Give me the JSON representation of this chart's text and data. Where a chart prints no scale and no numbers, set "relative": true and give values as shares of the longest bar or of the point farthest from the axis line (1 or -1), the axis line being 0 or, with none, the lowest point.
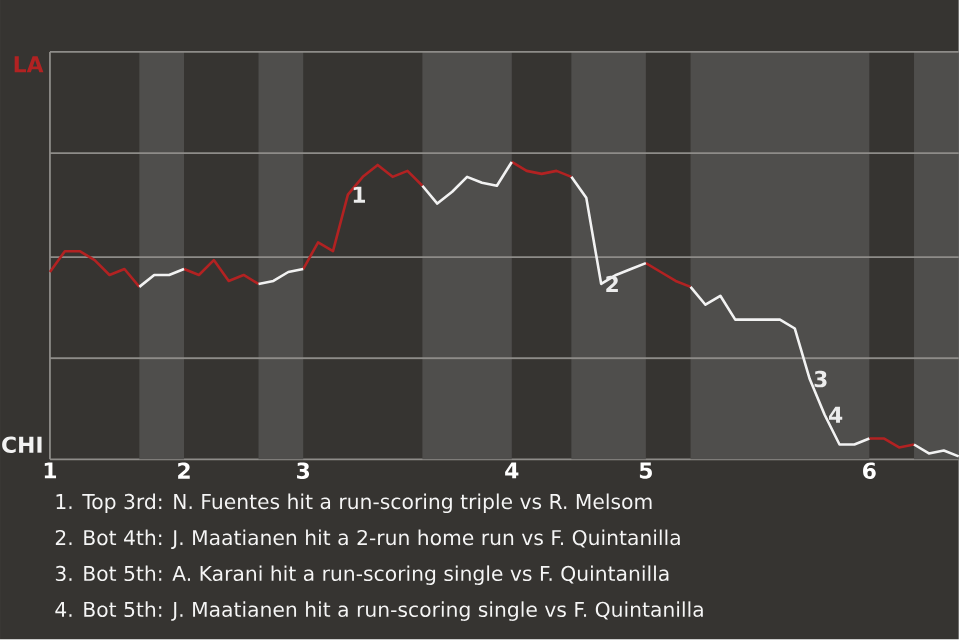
{
  "chart_data": {
    "type": "line",
    "relative": true,
    "ref_lines": [
      {
        "axis": "y",
        "value": 0.34,
        "color": "#8e8c89"
      },
      {
        "axis": "y",
        "value": 0.68,
        "color": "#8e8c89"
      },
      {
        "axis": "y",
        "value": 1.03,
        "color": "#8e8c89"
      }
    ],
    "categories": [
      "1",
      null,
      null,
      null,
      null,
      null,
      null,
      null,
      null,
      "2",
      null,
      null,
      null,
      null,
      null,
      null,
      null,
      "3",
      null,
      null,
      null,
      null,
      null,
      null,
      null,
      null,
      null,
      null,
      null,
      null,
      null,
      "4",
      null,
      null,
      null,
      null,
      null,
      null,
      null,
      null,
      "5",
      null,
      null,
      null,
      null,
      null,
      null,
      null,
      null,
      null,
      null,
      null,
      null,
      null,
      null,
      "6",
      null,
      null,
      null,
      null,
      null,
      null
    ],
    "series": [
      {
        "color": "#b22222",
        "values": [
          0.63,
          0.7,
          0.7,
          0.67,
          0.62,
          0.64,
          0.58,
          null,
          null,
          0.64,
          0.62,
          0.67,
          0.6,
          0.62,
          0.59,
          null,
          null,
          0.64,
          0.73,
          0.7,
          0.89,
          0.95,
          0.99,
          0.95,
          0.97,
          0.92,
          null,
          null,
          null,
          null,
          null,
          1,
          0.97,
          0.96,
          0.97,
          0.95,
          null,
          null,
          null,
          null,
          0.66,
          0.63,
          0.6,
          0.58,
          null,
          null,
          null,
          null,
          null,
          null,
          null,
          null,
          null,
          null,
          null,
          0.07,
          0.07,
          0.04,
          0.05,
          null,
          null,
          null
        ]
      },
      {
        "color": "#f2f2f2",
        "values": [
          null,
          null,
          null,
          null,
          null,
          null,
          0.58,
          0.62,
          0.62,
          0.64,
          null,
          null,
          null,
          null,
          0.59,
          0.6,
          0.63,
          0.64,
          null,
          null,
          null,
          null,
          null,
          null,
          null,
          0.92,
          0.86,
          0.9,
          0.95,
          0.93,
          0.92,
          1,
          null,
          null,
          null,
          0.95,
          0.88,
          0.59,
          0.62,
          0.64,
          0.66,
          null,
          null,
          0.58,
          0.52,
          0.55,
          0.47,
          0.47,
          0.47,
          0.47,
          0.44,
          0.27,
          0.15,
          0.05,
          0.05,
          0.07,
          null,
          null,
          0.05,
          0.02,
          0.03,
          0.01
        ]
      }
    ],
    "annotations": [
      "LA",
      "CHI",
      {
        "text": "1",
        "y": 0.89
      },
      {
        "text": "2",
        "y": 0.59
      },
      {
        "text": "3",
        "y": 0.27
      },
      {
        "text": "4",
        "y": 0.15
      },
      "1. Top 3rd: N. Fuentes hit a run-scoring triple vs R. Melsom",
      "2. Bot 4th: J. Maatianen hit a 2-run home run vs F. Quintanilla",
      "3. Bot 5th: A. Karani hit a run-scoring single vs F. Quintanilla",
      "4. Bot 5th: J. Maatianen hit a run-scoring single vs F. Quintanilla"
    ]
  }
}
